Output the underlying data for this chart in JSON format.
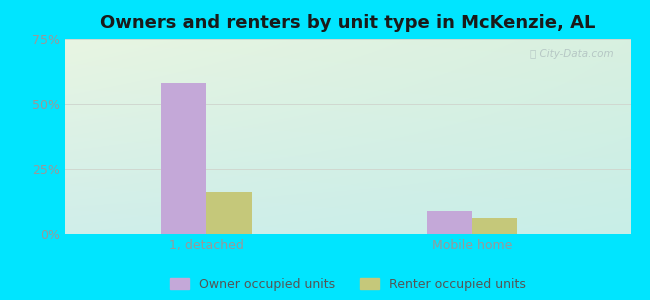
{
  "title": "Owners and renters by unit type in McKenzie, AL",
  "categories": [
    "1, detached",
    "Mobile home"
  ],
  "owner_values": [
    58.0,
    9.0
  ],
  "renter_values": [
    16.0,
    6.0
  ],
  "owner_color": "#c4a8d8",
  "renter_color": "#c5c87a",
  "ylim": [
    0,
    75
  ],
  "yticks": [
    0,
    25,
    50,
    75
  ],
  "yticklabels": [
    "0%",
    "25%",
    "50%",
    "75%"
  ],
  "outer_color": "#00e5ff",
  "gradient_top_left": "#e8f5e2",
  "gradient_bottom_right": "#c8eee8",
  "bar_width": 0.08,
  "group_positions": [
    0.25,
    0.72
  ],
  "legend_labels": [
    "Owner occupied units",
    "Renter occupied units"
  ],
  "watermark": "City-Data.com",
  "title_fontsize": 13,
  "tick_fontsize": 9,
  "legend_fontsize": 9,
  "tick_color": "#999999",
  "watermark_color": "#b0c0c0"
}
